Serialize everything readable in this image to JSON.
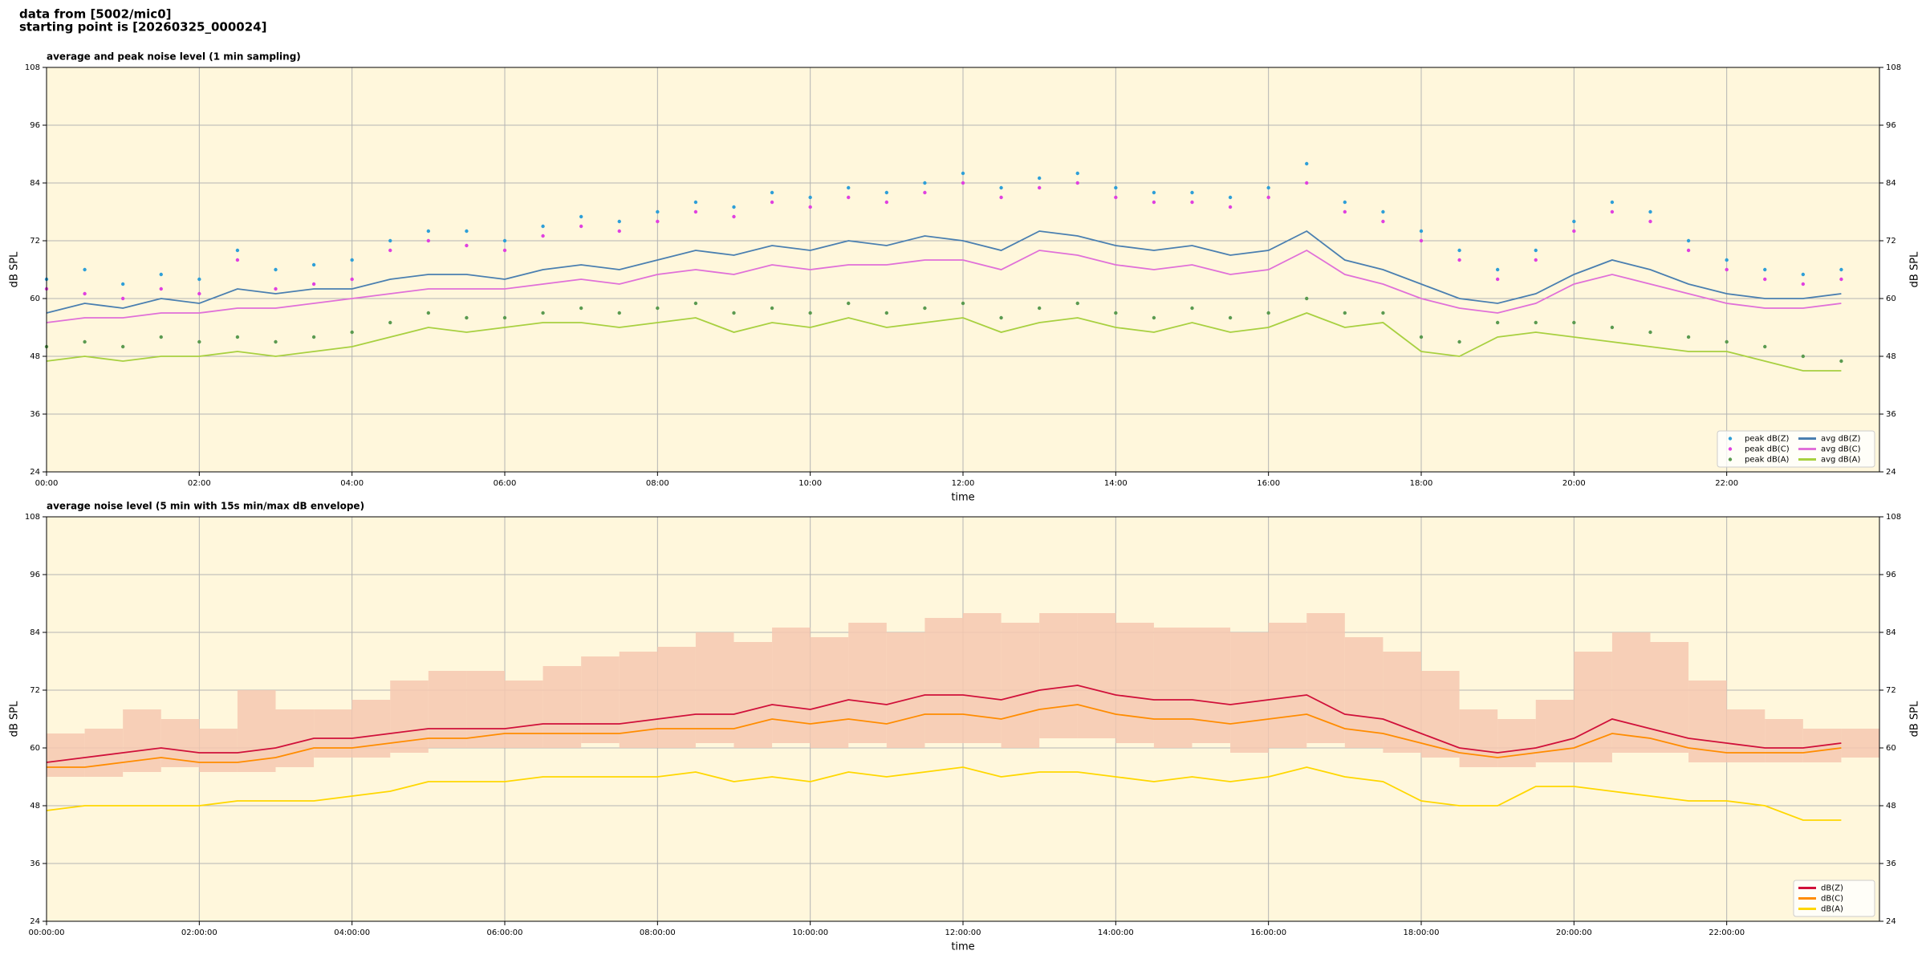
{
  "header": [
    "data from [5002/mic0]",
    "starting point is [20260325_000024]"
  ],
  "chart_data": [
    {
      "type": "line",
      "title": "average and peak noise level (1 min sampling)",
      "x_label": "time",
      "y_label": "dB SPL",
      "facecolor": "#fff7dc",
      "grid": true,
      "legend": "lower right",
      "legend_columns": 2,
      "xlim": [
        0,
        24
      ],
      "xticks": [
        {
          "value": 0,
          "label": "00:00"
        },
        {
          "value": 2,
          "label": "02:00"
        },
        {
          "value": 4,
          "label": "04:00"
        },
        {
          "value": 6,
          "label": "06:00"
        },
        {
          "value": 8,
          "label": "08:00"
        },
        {
          "value": 10,
          "label": "10:00"
        },
        {
          "value": 12,
          "label": "12:00"
        },
        {
          "value": 14,
          "label": "14:00"
        },
        {
          "value": 16,
          "label": "16:00"
        },
        {
          "value": 18,
          "label": "18:00"
        },
        {
          "value": 20,
          "label": "20:00"
        },
        {
          "value": 22,
          "label": "22:00"
        }
      ],
      "ylim": [
        24,
        108
      ],
      "yticks": [
        24,
        36,
        48,
        60,
        72,
        84,
        96,
        108
      ],
      "x": [
        0,
        0.5,
        1,
        1.5,
        2,
        2.5,
        3,
        3.5,
        4,
        4.5,
        5,
        5.5,
        6,
        6.5,
        7,
        7.5,
        8,
        8.5,
        9,
        9.5,
        10,
        10.5,
        11,
        11.5,
        12,
        12.5,
        13,
        13.5,
        14,
        14.5,
        15,
        15.5,
        16,
        16.5,
        17,
        17.5,
        18,
        18.5,
        19,
        19.5,
        20,
        20.5,
        21,
        21.5,
        22,
        22.5,
        23,
        23.5
      ],
      "series": [
        {
          "name": "peak dB(Z)",
          "style": "points",
          "color": "#2e9fd8",
          "values": [
            64,
            66,
            63,
            65,
            64,
            70,
            66,
            67,
            68,
            72,
            74,
            74,
            72,
            75,
            77,
            76,
            78,
            80,
            79,
            82,
            81,
            83,
            82,
            84,
            86,
            83,
            85,
            86,
            83,
            82,
            82,
            81,
            83,
            88,
            80,
            78,
            74,
            70,
            66,
            70,
            76,
            80,
            78,
            72,
            68,
            66,
            65,
            66
          ]
        },
        {
          "name": "peak dB(C)",
          "style": "points",
          "color": "#e040e0",
          "values": [
            62,
            61,
            60,
            62,
            61,
            68,
            62,
            63,
            64,
            70,
            72,
            71,
            70,
            73,
            75,
            74,
            76,
            78,
            77,
            80,
            79,
            81,
            80,
            82,
            84,
            81,
            83,
            84,
            81,
            80,
            80,
            79,
            81,
            84,
            78,
            76,
            72,
            68,
            64,
            68,
            74,
            78,
            76,
            70,
            66,
            64,
            63,
            64
          ]
        },
        {
          "name": "peak dB(A)",
          "style": "points",
          "color": "#5a9a50",
          "values": [
            50,
            51,
            50,
            52,
            51,
            52,
            51,
            52,
            53,
            55,
            57,
            56,
            56,
            57,
            58,
            57,
            58,
            59,
            57,
            58,
            57,
            59,
            57,
            58,
            59,
            56,
            58,
            59,
            57,
            56,
            58,
            56,
            57,
            60,
            57,
            57,
            52,
            51,
            55,
            55,
            55,
            54,
            53,
            52,
            51,
            50,
            48,
            47
          ]
        },
        {
          "name": "avg dB(Z)",
          "style": "line",
          "color": "#4a7fb0",
          "values": [
            57,
            59,
            58,
            60,
            59,
            62,
            61,
            62,
            62,
            64,
            65,
            65,
            64,
            66,
            67,
            66,
            68,
            70,
            69,
            71,
            70,
            72,
            71,
            73,
            72,
            70,
            74,
            73,
            71,
            70,
            71,
            69,
            70,
            74,
            68,
            66,
            63,
            60,
            59,
            61,
            65,
            68,
            66,
            63,
            61,
            60,
            60,
            61
          ]
        },
        {
          "name": "avg dB(C)",
          "style": "line",
          "color": "#e070d8",
          "values": [
            55,
            56,
            56,
            57,
            57,
            58,
            58,
            59,
            60,
            61,
            62,
            62,
            62,
            63,
            64,
            63,
            65,
            66,
            65,
            67,
            66,
            67,
            67,
            68,
            68,
            66,
            70,
            69,
            67,
            66,
            67,
            65,
            66,
            70,
            65,
            63,
            60,
            58,
            57,
            59,
            63,
            65,
            63,
            61,
            59,
            58,
            58,
            59
          ]
        },
        {
          "name": "avg dB(A)",
          "style": "line",
          "color": "#a8d040",
          "values": [
            47,
            48,
            47,
            48,
            48,
            49,
            48,
            49,
            50,
            52,
            54,
            53,
            54,
            55,
            55,
            54,
            55,
            56,
            53,
            55,
            54,
            56,
            54,
            55,
            56,
            53,
            55,
            56,
            54,
            53,
            55,
            53,
            54,
            57,
            54,
            55,
            49,
            48,
            52,
            53,
            52,
            51,
            50,
            49,
            49,
            47,
            45,
            45
          ]
        }
      ]
    },
    {
      "type": "line",
      "title": "average noise level (5 min with 15s min/max dB envelope)",
      "x_label": "time",
      "y_label": "dB SPL",
      "facecolor": "#fff7dc",
      "grid": true,
      "legend": "lower right",
      "legend_columns": 1,
      "xlim": [
        0,
        24
      ],
      "xticks": [
        {
          "value": 0,
          "label": "00:00:00"
        },
        {
          "value": 2,
          "label": "02:00:00"
        },
        {
          "value": 4,
          "label": "04:00:00"
        },
        {
          "value": 6,
          "label": "06:00:00"
        },
        {
          "value": 8,
          "label": "08:00:00"
        },
        {
          "value": 10,
          "label": "10:00:00"
        },
        {
          "value": 12,
          "label": "12:00:00"
        },
        {
          "value": 14,
          "label": "14:00:00"
        },
        {
          "value": 16,
          "label": "16:00:00"
        },
        {
          "value": 18,
          "label": "18:00:00"
        },
        {
          "value": 20,
          "label": "20:00:00"
        },
        {
          "value": 22,
          "label": "22:00:00"
        }
      ],
      "ylim": [
        24,
        108
      ],
      "yticks": [
        24,
        36,
        48,
        60,
        72,
        84,
        96,
        108
      ],
      "x": [
        0,
        0.5,
        1,
        1.5,
        2,
        2.5,
        3,
        3.5,
        4,
        4.5,
        5,
        5.5,
        6,
        6.5,
        7,
        7.5,
        8,
        8.5,
        9,
        9.5,
        10,
        10.5,
        11,
        11.5,
        12,
        12.5,
        13,
        13.5,
        14,
        14.5,
        15,
        15.5,
        16,
        16.5,
        17,
        17.5,
        18,
        18.5,
        19,
        19.5,
        20,
        20.5,
        21,
        21.5,
        22,
        22.5,
        23,
        23.5
      ],
      "band": {
        "color": "#f6c8b0",
        "lower": [
          54,
          54,
          55,
          56,
          55,
          55,
          56,
          58,
          58,
          59,
          60,
          60,
          60,
          60,
          61,
          60,
          60,
          61,
          60,
          61,
          60,
          61,
          60,
          61,
          61,
          60,
          62,
          62,
          61,
          60,
          61,
          59,
          60,
          61,
          60,
          59,
          58,
          56,
          56,
          57,
          57,
          59,
          59,
          57,
          57,
          57,
          57,
          58
        ],
        "upper": [
          63,
          64,
          68,
          66,
          64,
          72,
          68,
          68,
          70,
          74,
          76,
          76,
          74,
          77,
          79,
          80,
          81,
          84,
          82,
          85,
          83,
          86,
          84,
          87,
          88,
          86,
          88,
          88,
          86,
          85,
          85,
          84,
          86,
          88,
          83,
          80,
          76,
          68,
          66,
          70,
          80,
          84,
          82,
          74,
          68,
          66,
          64,
          64
        ]
      },
      "series": [
        {
          "name": "dB(Z)",
          "style": "line",
          "color": "#d0103a",
          "values": [
            57,
            58,
            59,
            60,
            59,
            59,
            60,
            62,
            62,
            63,
            64,
            64,
            64,
            65,
            65,
            65,
            66,
            67,
            67,
            69,
            68,
            70,
            69,
            71,
            71,
            70,
            72,
            73,
            71,
            70,
            70,
            69,
            70,
            71,
            67,
            66,
            63,
            60,
            59,
            60,
            62,
            66,
            64,
            62,
            61,
            60,
            60,
            61
          ]
        },
        {
          "name": "dB(C)",
          "style": "line",
          "color": "#ff8c00",
          "values": [
            56,
            56,
            57,
            58,
            57,
            57,
            58,
            60,
            60,
            61,
            62,
            62,
            63,
            63,
            63,
            63,
            64,
            64,
            64,
            66,
            65,
            66,
            65,
            67,
            67,
            66,
            68,
            69,
            67,
            66,
            66,
            65,
            66,
            67,
            64,
            63,
            61,
            59,
            58,
            59,
            60,
            63,
            62,
            60,
            59,
            59,
            59,
            60
          ]
        },
        {
          "name": "dB(A)",
          "style": "line",
          "color": "#ffd700",
          "values": [
            47,
            48,
            48,
            48,
            48,
            49,
            49,
            49,
            50,
            51,
            53,
            53,
            53,
            54,
            54,
            54,
            54,
            55,
            53,
            54,
            53,
            55,
            54,
            55,
            56,
            54,
            55,
            55,
            54,
            53,
            54,
            53,
            54,
            56,
            54,
            53,
            49,
            48,
            48,
            52,
            52,
            51,
            50,
            49,
            49,
            48,
            45,
            45
          ]
        }
      ]
    }
  ]
}
